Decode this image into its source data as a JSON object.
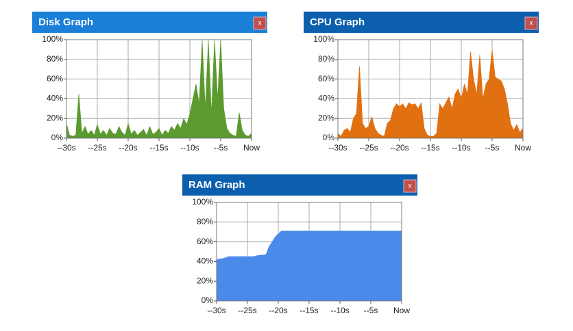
{
  "chart_data": [
    {
      "type": "area",
      "title": "Disk Graph",
      "close_button": "x",
      "color": "#5b9a2f",
      "header_color": "#1a7fd6",
      "x": [
        -30,
        -29.5,
        -29,
        -28.5,
        -28,
        -27.5,
        -27,
        -26.5,
        -26,
        -25.5,
        -25,
        -24.5,
        -24,
        -23.5,
        -23,
        -22.5,
        -22,
        -21.5,
        -21,
        -20.5,
        -20,
        -19.5,
        -19,
        -18.5,
        -18,
        -17.5,
        -17,
        -16.5,
        -16,
        -15.5,
        -15,
        -14.5,
        -14,
        -13.5,
        -13,
        -12.5,
        -12,
        -11.5,
        -11,
        -10.5,
        -10,
        -9.5,
        -9,
        -8.5,
        -8,
        -7.5,
        -7,
        -6.5,
        -6,
        -5.5,
        -5,
        -4.5,
        -4,
        -3.5,
        -3,
        -2.5,
        -2,
        -1.5,
        -1,
        -0.5,
        0
      ],
      "values": [
        15,
        3,
        2,
        3,
        45,
        5,
        12,
        4,
        8,
        3,
        14,
        4,
        8,
        3,
        10,
        5,
        4,
        12,
        6,
        3,
        15,
        4,
        8,
        3,
        6,
        9,
        3,
        12,
        4,
        6,
        10,
        3,
        8,
        5,
        12,
        8,
        15,
        10,
        20,
        14,
        25,
        40,
        55,
        35,
        100,
        30,
        100,
        25,
        100,
        40,
        100,
        30,
        10,
        5,
        3,
        2,
        26,
        8,
        3,
        2,
        5
      ],
      "xlim": [
        -30,
        0
      ],
      "ylim": [
        0,
        100
      ],
      "xticks": [
        {
          "value": -30,
          "label": "--30s"
        },
        {
          "value": -25,
          "label": "--25s"
        },
        {
          "value": -20,
          "label": "--20s"
        },
        {
          "value": -15,
          "label": "--15s"
        },
        {
          "value": -10,
          "label": "--10s"
        },
        {
          "value": -5,
          "label": "--5s"
        },
        {
          "value": 0,
          "label": "Now"
        }
      ],
      "yticks": [
        {
          "value": 0,
          "label": "0%"
        },
        {
          "value": 20,
          "label": "20%"
        },
        {
          "value": 40,
          "label": "40%"
        },
        {
          "value": 60,
          "label": "60%"
        },
        {
          "value": 80,
          "label": "80%"
        },
        {
          "value": 100,
          "label": "100%"
        }
      ],
      "grid": true
    },
    {
      "type": "area",
      "title": "CPU Graph",
      "close_button": "x",
      "color": "#e07010",
      "header_color": "#0b5fad",
      "x": [
        -30,
        -29.5,
        -29,
        -28.5,
        -28,
        -27.5,
        -27,
        -26.5,
        -26,
        -25.5,
        -25,
        -24.5,
        -24,
        -23.5,
        -23,
        -22.5,
        -22,
        -21.5,
        -21,
        -20.5,
        -20,
        -19.5,
        -19,
        -18.5,
        -18,
        -17.5,
        -17,
        -16.5,
        -16,
        -15.5,
        -15,
        -14.5,
        -14,
        -13.5,
        -13,
        -12.5,
        -12,
        -11.5,
        -11,
        -10.5,
        -10,
        -9.5,
        -9,
        -8.5,
        -8,
        -7.5,
        -7,
        -6.5,
        -6,
        -5.5,
        -5,
        -4.5,
        -4,
        -3.5,
        -3,
        -2.5,
        -2,
        -1.5,
        -1,
        -0.5,
        0
      ],
      "values": [
        5,
        2,
        8,
        10,
        6,
        20,
        25,
        73,
        15,
        10,
        12,
        22,
        10,
        5,
        3,
        2,
        15,
        18,
        30,
        35,
        32,
        35,
        30,
        36,
        34,
        35,
        30,
        36,
        10,
        3,
        2,
        2,
        5,
        35,
        30,
        36,
        42,
        30,
        45,
        50,
        40,
        55,
        45,
        88,
        60,
        45,
        85,
        40,
        55,
        60,
        90,
        62,
        60,
        58,
        50,
        35,
        15,
        8,
        14,
        6,
        10
      ],
      "xlim": [
        -30,
        0
      ],
      "ylim": [
        0,
        100
      ],
      "xticks": [
        {
          "value": -30,
          "label": "--30s"
        },
        {
          "value": -25,
          "label": "--25s"
        },
        {
          "value": -20,
          "label": "--20s"
        },
        {
          "value": -15,
          "label": "--15s"
        },
        {
          "value": -10,
          "label": "--10s"
        },
        {
          "value": -5,
          "label": "--5s"
        },
        {
          "value": 0,
          "label": "Now"
        }
      ],
      "yticks": [
        {
          "value": 0,
          "label": "0%"
        },
        {
          "value": 20,
          "label": "20%"
        },
        {
          "value": 40,
          "label": "40%"
        },
        {
          "value": 60,
          "label": "60%"
        },
        {
          "value": 80,
          "label": "80%"
        },
        {
          "value": 100,
          "label": "100%"
        }
      ],
      "grid": true
    },
    {
      "type": "area",
      "title": "RAM Graph",
      "close_button": "x",
      "color": "#4a8ae8",
      "header_color": "#0b5fad",
      "x": [
        -30,
        -29,
        -28,
        -25,
        -24,
        -23.5,
        -22,
        -21.5,
        -21,
        -20.5,
        -20,
        -19.5,
        0
      ],
      "values": [
        42,
        43,
        45,
        45,
        45,
        46,
        47,
        55,
        60,
        65,
        68,
        71,
        71
      ],
      "xlim": [
        -30,
        0
      ],
      "ylim": [
        0,
        100
      ],
      "xticks": [
        {
          "value": -30,
          "label": "--30s"
        },
        {
          "value": -25,
          "label": "--25s"
        },
        {
          "value": -20,
          "label": "--20s"
        },
        {
          "value": -15,
          "label": "--15s"
        },
        {
          "value": -10,
          "label": "--10s"
        },
        {
          "value": -5,
          "label": "--5s"
        },
        {
          "value": 0,
          "label": "Now"
        }
      ],
      "yticks": [
        {
          "value": 0,
          "label": "0%"
        },
        {
          "value": 20,
          "label": "20%"
        },
        {
          "value": 40,
          "label": "40%"
        },
        {
          "value": 60,
          "label": "60%"
        },
        {
          "value": 80,
          "label": "80%"
        },
        {
          "value": 100,
          "label": "100%"
        }
      ],
      "grid": true
    }
  ]
}
